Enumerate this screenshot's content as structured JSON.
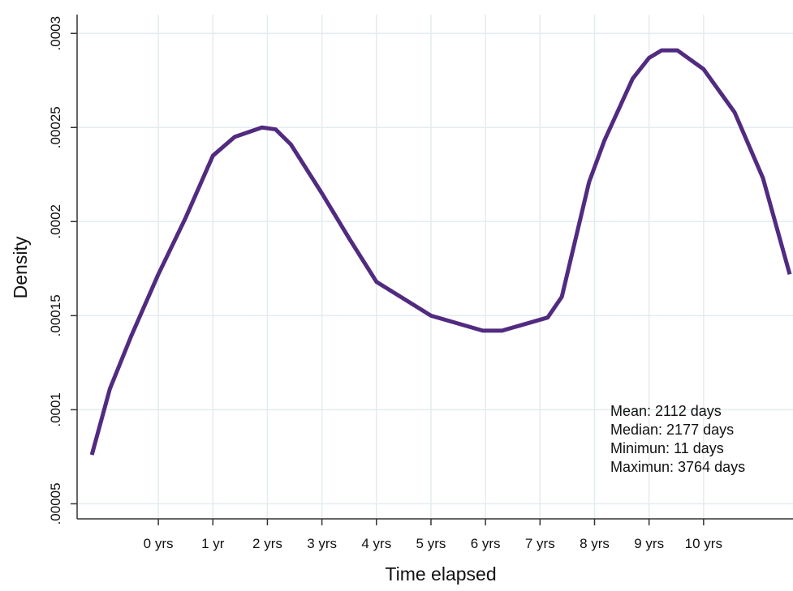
{
  "chart_data": {
    "type": "line",
    "x_label": "Time elapsed",
    "y_label": "Density",
    "x": [
      -1.22,
      -0.89,
      -0.5,
      0,
      0.5,
      1,
      1.4,
      1.9,
      2.15,
      2.43,
      3,
      3.5,
      4,
      5,
      5.95,
      6.3,
      7.14,
      7.4,
      7.9,
      8.18,
      8.7,
      9.0,
      9.23,
      9.52,
      10,
      10.57,
      11.09,
      11.58
    ],
    "series": [
      {
        "color": "#512b80",
        "values": [
          7.6e-05,
          0.000111,
          0.000139,
          0.000172,
          0.000202,
          0.000235,
          0.000245,
          0.00025,
          0.000249,
          0.000241,
          0.000215,
          0.000191,
          0.000168,
          0.00015,
          0.000142,
          0.000142,
          0.000149,
          0.00016,
          0.000221,
          0.000243,
          0.000276,
          0.000287,
          0.000291,
          0.000291,
          0.000281,
          0.000258,
          0.000223,
          0.000172
        ]
      }
    ],
    "xlim": [
      -1.49,
      11.64
    ],
    "ylim": [
      4.2e-05,
      0.00031
    ],
    "xticks": [
      {
        "value": 0,
        "label": "0 yrs"
      },
      {
        "value": 1,
        "label": "1 yr"
      },
      {
        "value": 2,
        "label": "2 yrs"
      },
      {
        "value": 3,
        "label": "3 yrs"
      },
      {
        "value": 4,
        "label": "4 yrs"
      },
      {
        "value": 5,
        "label": "5 yrs"
      },
      {
        "value": 6,
        "label": "6 yrs"
      },
      {
        "value": 7,
        "label": "7 yrs"
      },
      {
        "value": 8,
        "label": "8 yrs"
      },
      {
        "value": 9,
        "label": "9 yrs"
      },
      {
        "value": 10,
        "label": "10 yrs"
      }
    ],
    "yticks": [
      {
        "value": 5e-05,
        "label": ".00005"
      },
      {
        "value": 0.0001,
        "label": ".0001"
      },
      {
        "value": 0.00015,
        "label": ".00015"
      },
      {
        "value": 0.0002,
        "label": ".0002"
      },
      {
        "value": 0.00025,
        "label": ".00025"
      },
      {
        "value": 0.0003,
        "label": ".0003"
      }
    ],
    "grid": true,
    "annotations": [
      "Mean: 2112 days",
      "Median: 2177 days",
      "Minimun: 11 days",
      "Maximun: 3764 days"
    ]
  }
}
